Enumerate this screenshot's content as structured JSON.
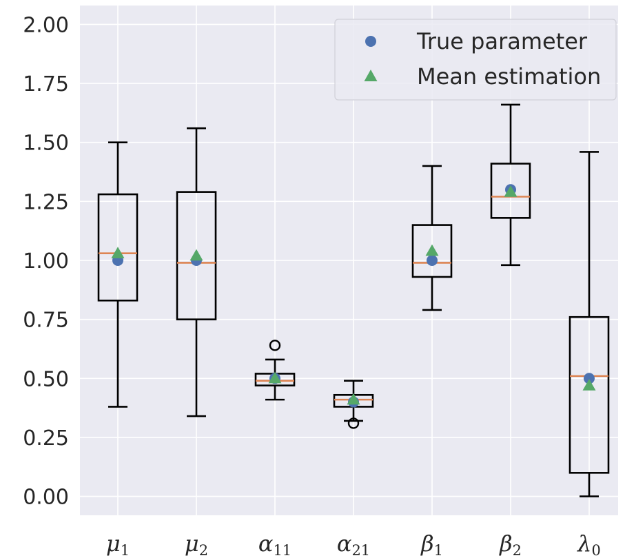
{
  "chart_data": {
    "type": "box",
    "title": "",
    "ylim": [
      -0.08,
      2.08
    ],
    "yticks": [
      "0.00",
      "0.25",
      "0.50",
      "0.75",
      "1.00",
      "1.25",
      "1.50",
      "1.75",
      "2.00"
    ],
    "grid": true,
    "legend_position": "top-right",
    "legend": [
      {
        "label": "True parameter",
        "marker": "circle"
      },
      {
        "label": "Mean estimation",
        "marker": "triangle"
      }
    ],
    "categories": [
      {
        "symbol": "μ",
        "sub": "1"
      },
      {
        "symbol": "μ",
        "sub": "2"
      },
      {
        "symbol": "α",
        "sub": "11"
      },
      {
        "symbol": "α",
        "sub": "21"
      },
      {
        "symbol": "β",
        "sub": "1"
      },
      {
        "symbol": "β",
        "sub": "2"
      },
      {
        "symbol": "λ",
        "sub": "0"
      }
    ],
    "boxes": [
      {
        "whisker_low": 0.38,
        "q1": 0.83,
        "median": 1.03,
        "q3": 1.28,
        "whisker_high": 1.5,
        "outliers": [],
        "true_value": 1.0,
        "mean": 1.03
      },
      {
        "whisker_low": 0.34,
        "q1": 0.75,
        "median": 0.99,
        "q3": 1.29,
        "whisker_high": 1.56,
        "outliers": [],
        "true_value": 1.0,
        "mean": 1.02
      },
      {
        "whisker_low": 0.41,
        "q1": 0.47,
        "median": 0.49,
        "q3": 0.52,
        "whisker_high": 0.58,
        "outliers": [
          0.64
        ],
        "true_value": 0.5,
        "mean": 0.5
      },
      {
        "whisker_low": 0.32,
        "q1": 0.38,
        "median": 0.41,
        "q3": 0.43,
        "whisker_high": 0.49,
        "outliers": [
          0.31
        ],
        "true_value": 0.4,
        "mean": 0.41
      },
      {
        "whisker_low": 0.79,
        "q1": 0.93,
        "median": 0.99,
        "q3": 1.15,
        "whisker_high": 1.4,
        "outliers": [],
        "true_value": 1.0,
        "mean": 1.04
      },
      {
        "whisker_low": 0.98,
        "q1": 1.18,
        "median": 1.27,
        "q3": 1.41,
        "whisker_high": 1.66,
        "outliers": [],
        "true_value": 1.3,
        "mean": 1.29
      },
      {
        "whisker_low": 0.0,
        "q1": 0.1,
        "median": 0.51,
        "q3": 0.76,
        "whisker_high": 1.46,
        "outliers": [],
        "true_value": 0.5,
        "mean": 0.47
      }
    ],
    "colors": {
      "background": "#eaeaf2",
      "grid": "#ffffff",
      "box": "#000000",
      "median": "#dd8452",
      "true_marker": "#4c72b0",
      "mean_marker": "#55a868",
      "text": "#262626"
    }
  }
}
